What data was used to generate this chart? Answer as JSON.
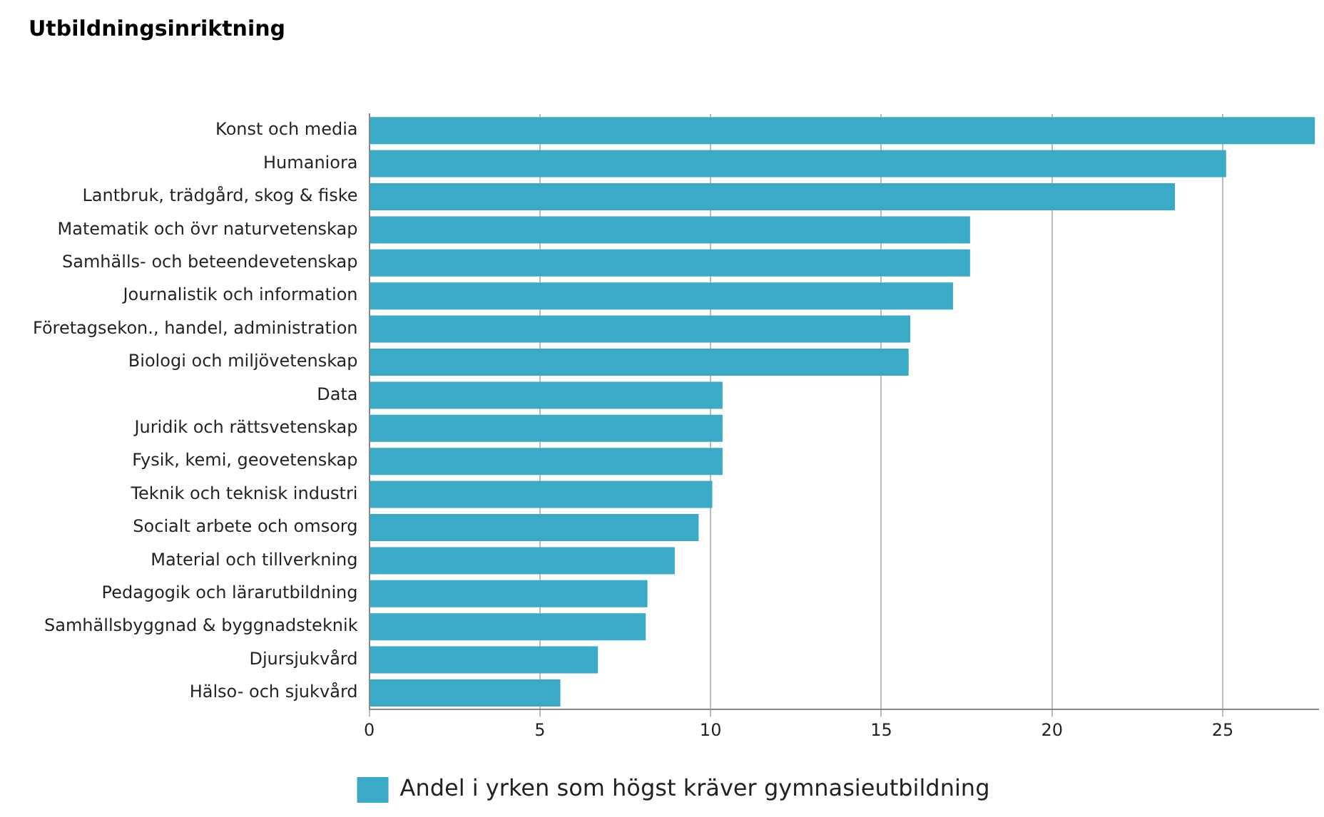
{
  "chart_data": {
    "type": "bar",
    "orientation": "horizontal",
    "title": "Utbildningsinriktning",
    "categories": [
      "Konst och media",
      "Humaniora",
      "Lantbruk, trädgård, skog & fiske",
      "Matematik och övr naturvetenskap",
      "Samhälls- och beteendevetenskap",
      "Journalistik och information",
      "Företagsekon., handel, administration",
      "Biologi och miljövetenskap",
      "Data",
      "Juridik och rättsvetenskap",
      "Fysik, kemi, geovetenskap",
      "Teknik och teknisk industri",
      "Socialt arbete och omsorg",
      "Material och tillverkning",
      "Pedagogik och lärarutbildning",
      "Samhällsbyggnad & byggnadsteknik",
      "Djursjukvård",
      "Hälso- och sjukvård"
    ],
    "series": [
      {
        "name": "Andel i yrken som högst kräver gymnasieutbildning",
        "color": "#3aaac6",
        "values": [
          27.7,
          25.1,
          23.6,
          17.6,
          17.6,
          17.1,
          15.85,
          15.8,
          10.35,
          10.35,
          10.35,
          10.05,
          9.65,
          8.95,
          8.15,
          8.1,
          6.7,
          5.6
        ]
      }
    ],
    "xlim": [
      0,
      27.8
    ],
    "xticks": [
      0,
      5,
      10,
      15,
      20,
      25
    ],
    "grid": "x",
    "legend": "bottom"
  }
}
